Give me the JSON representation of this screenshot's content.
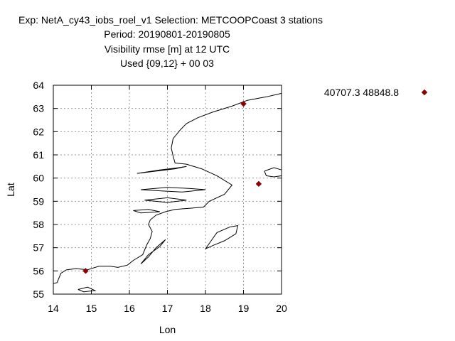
{
  "header": {
    "line1": "Exp: NetA_cy43_iobs_roel_v1   Selection: METCOOPCoast      3 stations",
    "line2": "Period: 20190801-20190805",
    "line3": "Visibility rmse [m] at  12 UTC",
    "line4": "Used {09,12} + 00 03"
  },
  "chart_data": {
    "type": "scatter",
    "title": "",
    "xlabel": "Lon",
    "ylabel": "Lat",
    "xlim": [
      14,
      20
    ],
    "ylim": [
      55,
      64
    ],
    "xticks": [
      14,
      15,
      16,
      17,
      18,
      19,
      20
    ],
    "yticks": [
      55,
      56,
      57,
      58,
      59,
      60,
      61,
      62,
      63,
      64
    ],
    "grid": true,
    "legend_position": "top-right",
    "marker_color": "#8b0000",
    "series": [
      {
        "name": "40707.3 48848.8",
        "points": [
          {
            "lon": 14.85,
            "lat": 56.0
          },
          {
            "lon": 19.0,
            "lat": 63.2
          },
          {
            "lon": 19.4,
            "lat": 59.75
          }
        ]
      }
    ],
    "coastlines": [
      [
        [
          14,
          55.45
        ],
        [
          14.1,
          55.5
        ],
        [
          14.2,
          55.9
        ],
        [
          14.35,
          56.05
        ],
        [
          14.6,
          56.1
        ],
        [
          14.9,
          56.05
        ],
        [
          15.2,
          56.2
        ],
        [
          15.5,
          56.2
        ],
        [
          15.7,
          56.15
        ],
        [
          15.95,
          56.25
        ],
        [
          16.1,
          56.45
        ],
        [
          16.35,
          56.7
        ],
        [
          16.45,
          57.1
        ],
        [
          16.55,
          57.4
        ],
        [
          16.6,
          57.7
        ],
        [
          16.5,
          58.0
        ],
        [
          16.55,
          58.2
        ],
        [
          16.7,
          58.4
        ],
        [
          16.95,
          58.55
        ],
        [
          17.2,
          58.65
        ],
        [
          17.6,
          58.7
        ],
        [
          17.95,
          58.75
        ],
        [
          18.1,
          59.0
        ],
        [
          18.5,
          59.3
        ],
        [
          18.7,
          59.7
        ],
        [
          18.3,
          60.1
        ],
        [
          17.9,
          60.4
        ],
        [
          17.5,
          60.6
        ],
        [
          17.2,
          60.65
        ],
        [
          17.15,
          60.95
        ],
        [
          17.1,
          61.3
        ],
        [
          17.15,
          61.7
        ],
        [
          17.35,
          62.1
        ],
        [
          17.5,
          62.35
        ],
        [
          17.8,
          62.6
        ],
        [
          18.2,
          62.85
        ],
        [
          18.7,
          63.1
        ],
        [
          19.1,
          63.35
        ],
        [
          19.6,
          63.5
        ],
        [
          20,
          63.65
        ]
      ],
      [
        [
          16.2,
          60.2
        ],
        [
          16.8,
          60.35
        ],
        [
          17.3,
          60.45
        ],
        [
          17.5,
          60.5
        ],
        [
          17.2,
          60.4
        ],
        [
          16.7,
          60.3
        ],
        [
          16.2,
          60.2
        ]
      ],
      [
        [
          16.3,
          59.5
        ],
        [
          17.0,
          59.6
        ],
        [
          17.6,
          59.55
        ],
        [
          18.0,
          59.5
        ],
        [
          17.4,
          59.4
        ],
        [
          16.8,
          59.45
        ],
        [
          16.3,
          59.5
        ]
      ],
      [
        [
          16.4,
          59.05
        ],
        [
          17.0,
          59.15
        ],
        [
          17.5,
          59.05
        ],
        [
          17.0,
          58.95
        ],
        [
          16.4,
          59.05
        ]
      ],
      [
        [
          16.1,
          58.6
        ],
        [
          16.5,
          58.65
        ],
        [
          16.8,
          58.55
        ],
        [
          16.3,
          58.5
        ],
        [
          16.1,
          58.6
        ]
      ],
      [
        [
          16.3,
          56.3
        ],
        [
          16.5,
          56.7
        ],
        [
          16.8,
          57.05
        ],
        [
          16.95,
          57.35
        ],
        [
          16.7,
          57.0
        ],
        [
          16.5,
          56.6
        ],
        [
          16.3,
          56.3
        ]
      ],
      [
        [
          18.0,
          56.95
        ],
        [
          18.15,
          57.3
        ],
        [
          18.3,
          57.65
        ],
        [
          18.65,
          57.9
        ],
        [
          18.85,
          57.95
        ],
        [
          18.8,
          57.6
        ],
        [
          18.5,
          57.3
        ],
        [
          18.2,
          57.1
        ],
        [
          18.0,
          56.95
        ]
      ],
      [
        [
          14.65,
          55.2
        ],
        [
          14.9,
          55.3
        ],
        [
          15.1,
          55.15
        ],
        [
          14.8,
          55.1
        ],
        [
          14.65,
          55.2
        ]
      ],
      [
        [
          19.55,
          60.3
        ],
        [
          19.8,
          60.45
        ],
        [
          20,
          60.35
        ],
        [
          20,
          60.1
        ],
        [
          19.8,
          60.05
        ],
        [
          19.6,
          60.1
        ],
        [
          19.55,
          60.3
        ]
      ]
    ]
  }
}
